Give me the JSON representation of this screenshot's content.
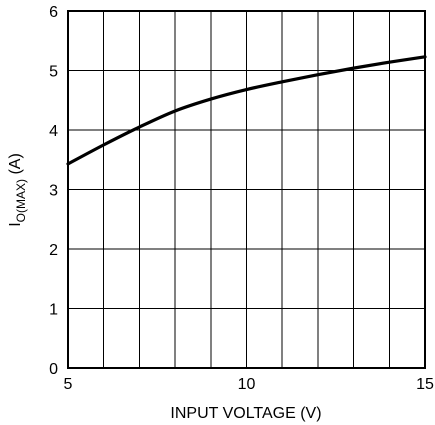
{
  "chart_data": {
    "type": "line",
    "xlabel": "INPUT VOLTAGE (V)",
    "ylabel": {
      "main": "I",
      "subscript": "O(MAX)",
      "unit": " (A)"
    },
    "xlim": [
      5,
      15
    ],
    "ylim": [
      0,
      6
    ],
    "x_grid_step": 1,
    "y_grid_step": 1,
    "x_tick_labels": [
      "5",
      "10",
      "15"
    ],
    "x_tick_values": [
      5,
      10,
      15
    ],
    "y_tick_labels": [
      "0",
      "1",
      "2",
      "3",
      "4",
      "5",
      "6"
    ],
    "y_tick_values": [
      0,
      1,
      2,
      3,
      4,
      5,
      6
    ],
    "grid": true,
    "series": [
      {
        "x": [
          5,
          6,
          7,
          8,
          9,
          10,
          11,
          12,
          13,
          14,
          15
        ],
        "y": [
          3.43,
          3.75,
          4.05,
          4.32,
          4.52,
          4.68,
          4.81,
          4.93,
          5.04,
          5.14,
          5.23
        ]
      }
    ]
  }
}
